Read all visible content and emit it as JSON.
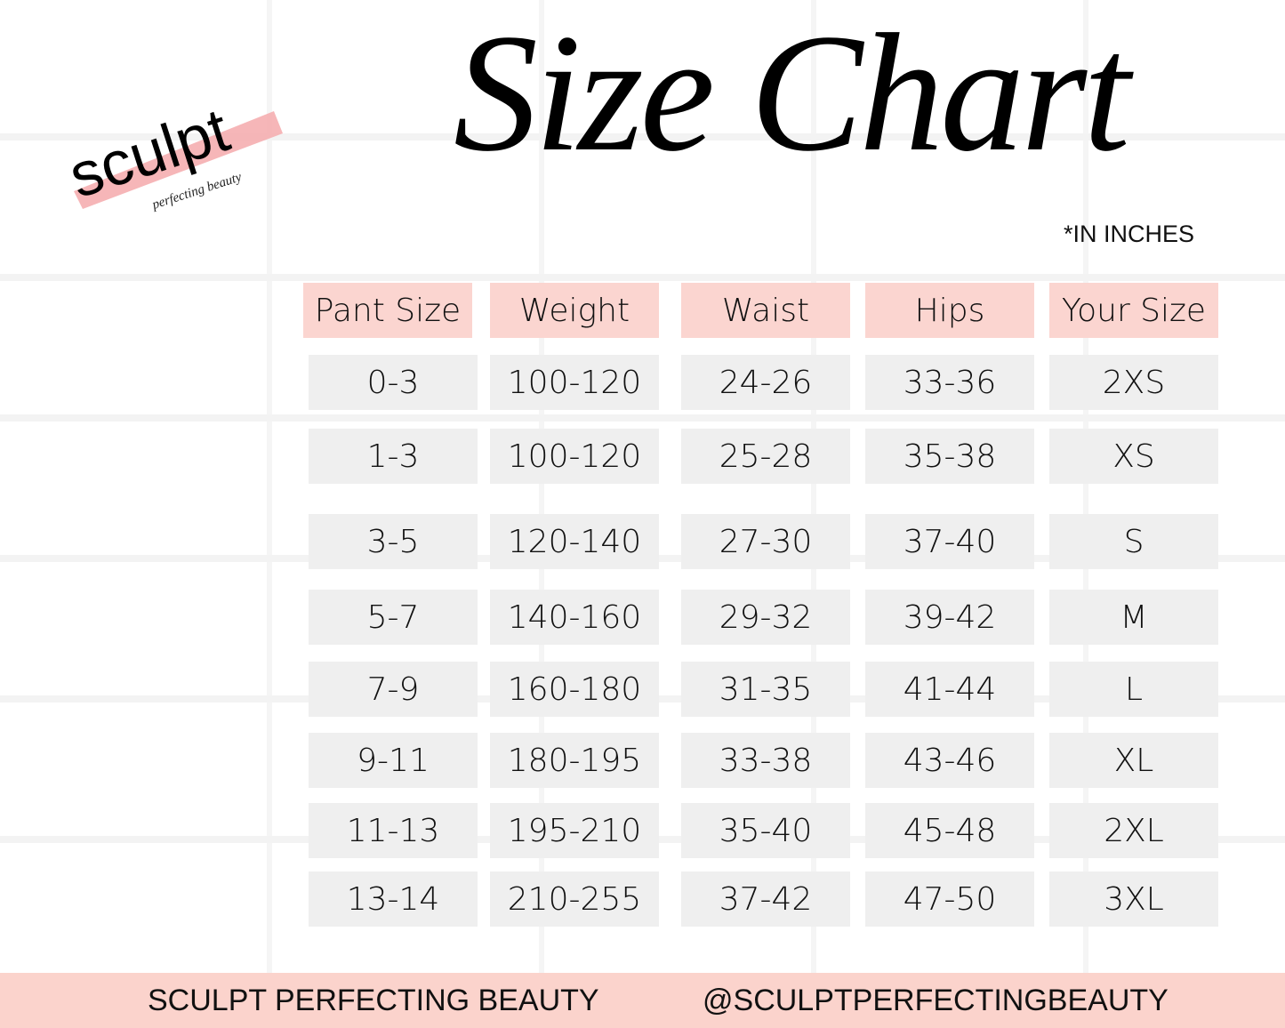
{
  "logo": {
    "brand": "sculpt",
    "tagline": "perfecting beauty",
    "accent": "#f4a9ab"
  },
  "title": "Size Chart",
  "units_note": "*IN INCHES",
  "colors": {
    "header_bg": "#fbd5d0",
    "cell_bg": "#efefef",
    "footer_bg": "#fbd3cc"
  },
  "table": {
    "headers": [
      "Pant Size",
      "Weight",
      "Waist",
      "Hips",
      "Your Size"
    ],
    "rows": [
      [
        "0-3",
        "100-120",
        "24-26",
        "33-36",
        "2XS"
      ],
      [
        "1-3",
        "100-120",
        "25-28",
        "35-38",
        "XS"
      ],
      [
        "3-5",
        "120-140",
        "27-30",
        "37-40",
        "S"
      ],
      [
        "5-7",
        "140-160",
        "29-32",
        "39-42",
        "M"
      ],
      [
        "7-9",
        "160-180",
        "31-35",
        "41-44",
        "L"
      ],
      [
        "9-11",
        "180-195",
        "33-38",
        "43-46",
        "XL"
      ],
      [
        "11-13",
        "195-210",
        "35-40",
        "45-48",
        "2XL"
      ],
      [
        "13-14",
        "210-255",
        "37-42",
        "47-50",
        "3XL"
      ]
    ]
  },
  "footer": {
    "brand": "SCULPT PERFECTING BEAUTY",
    "handle": "@SCULPTPERFECTINGBEAUTY"
  }
}
